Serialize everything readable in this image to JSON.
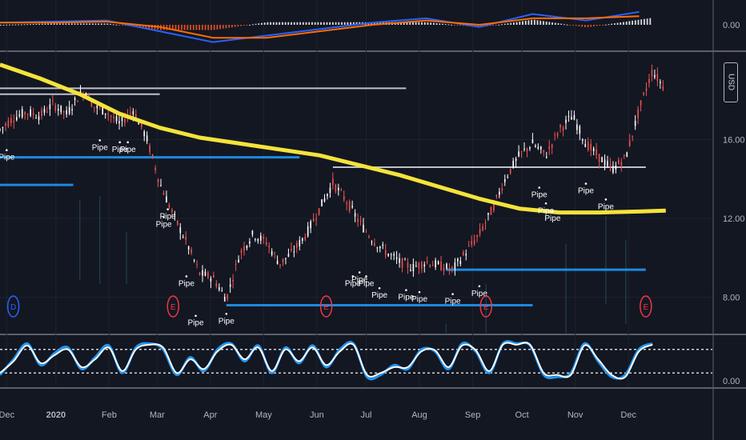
{
  "currency": "USD",
  "chart_data": [
    {
      "type": "line",
      "panel": "MACD",
      "y_tick_labels": [
        "0.00"
      ],
      "ylim": [
        -1.0,
        1.0
      ],
      "histogram_colors": {
        "positive": "#ffffff",
        "negative": "#ff5722"
      },
      "series": [
        {
          "color": "#2962ff",
          "x": [
            0,
            4,
            8,
            12,
            16,
            20,
            24,
            28,
            32,
            36,
            40,
            44,
            48
          ],
          "values": [
            0.1,
            0.15,
            0.2,
            -0.3,
            -0.8,
            -0.5,
            -0.2,
            0.1,
            0.3,
            -0.1,
            0.5,
            0.2,
            0.6
          ]
        },
        {
          "color": "#ff6d00",
          "x": [
            0,
            4,
            8,
            12,
            16,
            20,
            24,
            28,
            32,
            36,
            40,
            44,
            48
          ],
          "values": [
            0.1,
            0.1,
            0.15,
            -0.1,
            -0.6,
            -0.6,
            -0.3,
            0.0,
            0.2,
            0.0,
            0.3,
            0.3,
            0.4
          ]
        }
      ]
    },
    {
      "type": "candlestick",
      "panel": "price",
      "x_tick_labels": [
        "Dec",
        "2020",
        "Feb",
        "Mar",
        "Apr",
        "May",
        "Jun",
        "Jul",
        "Aug",
        "Sep",
        "Oct",
        "Nov",
        "Dec"
      ],
      "y_tick_labels": [
        "8.00",
        "12.00",
        "16.00"
      ],
      "ylim": [
        6.2,
        20.4
      ],
      "log_scale": false,
      "price_approx": {
        "x": [
          0,
          1,
          2,
          3,
          4,
          5,
          6,
          6.5,
          7,
          8,
          9,
          10,
          11,
          12,
          13,
          14,
          15,
          16,
          17,
          18,
          19,
          20,
          21,
          22,
          23,
          24,
          25,
          26,
          27,
          28,
          29,
          30,
          31,
          32,
          33,
          34,
          35,
          36,
          37,
          38,
          39,
          40,
          41,
          42,
          43,
          44,
          45,
          46,
          47,
          48,
          49,
          50
        ],
        "values": [
          16.5,
          17.1,
          17.4,
          17.2,
          17.8,
          17.3,
          18.3,
          18.4,
          17.7,
          17.4,
          16.8,
          17.5,
          16.1,
          13.8,
          12.2,
          10.8,
          9.2,
          9.0,
          7.9,
          10.2,
          11.2,
          10.8,
          9.7,
          10.3,
          11.2,
          12.5,
          13.8,
          12.9,
          11.8,
          10.9,
          10.3,
          9.8,
          9.5,
          9.8,
          9.6,
          9.4,
          10.3,
          11.2,
          12.5,
          14.1,
          15.2,
          15.8,
          15.2,
          16.5,
          17.2,
          15.8,
          15.1,
          14.5,
          15.1,
          17.5,
          19.5,
          18.5
        ]
      },
      "series": [
        {
          "name": "",
          "color": "#f5e33a",
          "x": [
            0,
            3,
            6,
            9,
            12,
            15,
            18,
            21,
            24,
            27,
            30,
            33,
            36,
            39,
            42,
            45,
            48,
            50
          ],
          "values": [
            19.8,
            19.1,
            18.3,
            17.3,
            16.6,
            16.1,
            15.8,
            15.5,
            15.2,
            14.7,
            14.2,
            13.6,
            13.0,
            12.5,
            12.3,
            12.3,
            12.35,
            12.4
          ]
        }
      ],
      "horizontal_levels": [
        {
          "color": "#d1d4dc",
          "value": 18.6,
          "x_start": 0,
          "x_end": 30.5
        },
        {
          "color": "#d1d4dc",
          "value": 18.3,
          "x_start": 0,
          "x_end": 12
        },
        {
          "color": "#2196f3",
          "value": 15.1,
          "x_start": 0,
          "x_end": 22.5
        },
        {
          "color": "#2196f3",
          "value": 13.7,
          "x_start": 0,
          "x_end": 5.5
        },
        {
          "color": "#d1d4dc",
          "value": 14.6,
          "x_start": 25,
          "x_end": 48.5
        },
        {
          "color": "#2196f3",
          "value": 9.4,
          "x_start": 33.5,
          "x_end": 48.5
        },
        {
          "color": "#2196f3",
          "value": 7.6,
          "x_start": 17,
          "x_end": 40
        }
      ],
      "event_markers": [
        {
          "label": "D",
          "color": "#2962ff",
          "x": 1.0
        },
        {
          "label": "E",
          "color": "#f23645",
          "x": 13.0
        },
        {
          "label": "E",
          "color": "#f23645",
          "x": 24.5
        },
        {
          "label": "E",
          "color": "#f23645",
          "x": 36.5
        },
        {
          "label": "E",
          "color": "#f23645",
          "x": 48.5
        }
      ],
      "pipe_labels": [
        {
          "text": "Pipe",
          "x": 0.5,
          "value": 15.3
        },
        {
          "text": "Pipe",
          "x": 7.5,
          "value": 15.8
        },
        {
          "text": "Pipe",
          "x": 9.0,
          "value": 15.7
        },
        {
          "text": "Pipe",
          "x": 9.6,
          "value": 15.7
        },
        {
          "text": "Pipe",
          "x": 12.3,
          "value": 11.9
        },
        {
          "text": "Pipe",
          "x": 12.6,
          "value": 12.3
        },
        {
          "text": "Pipe",
          "x": 14.0,
          "value": 8.9
        },
        {
          "text": "Pipe",
          "x": 14.7,
          "value": 6.9
        },
        {
          "text": "Pipe",
          "x": 17.0,
          "value": 7.0
        },
        {
          "text": "Pipe",
          "x": 26.5,
          "value": 8.9
        },
        {
          "text": "Pipe",
          "x": 27.0,
          "value": 9.1
        },
        {
          "text": "Pipe",
          "x": 27.5,
          "value": 8.9
        },
        {
          "text": "Pipe",
          "x": 28.5,
          "value": 8.3
        },
        {
          "text": "Pipe",
          "x": 30.5,
          "value": 8.2
        },
        {
          "text": "Pipe",
          "x": 31.5,
          "value": 8.1
        },
        {
          "text": "Pipe",
          "x": 34.0,
          "value": 8.0
        },
        {
          "text": "Pipe",
          "x": 36.0,
          "value": 8.4
        },
        {
          "text": "Pipe",
          "x": 40.5,
          "value": 13.4
        },
        {
          "text": "Pipe",
          "x": 41.0,
          "value": 12.6
        },
        {
          "text": "Pipe",
          "x": 41.5,
          "value": 12.2
        },
        {
          "text": "Pipe",
          "x": 44.0,
          "value": 13.6
        },
        {
          "text": "Pipe",
          "x": 45.5,
          "value": 12.8
        }
      ]
    },
    {
      "type": "line",
      "panel": "Stochastic",
      "y_tick_labels": [
        "0.00"
      ],
      "ylim": [
        0,
        100
      ],
      "reference_lines": [
        80,
        20
      ],
      "series": [
        {
          "color": "#2196f3",
          "x": [
            0,
            1,
            2,
            3,
            4,
            5,
            6,
            7,
            8,
            9,
            10,
            11,
            12,
            13,
            14,
            15,
            16,
            17,
            18,
            19,
            20,
            21,
            22,
            23,
            24,
            25,
            26,
            27,
            28,
            29,
            30,
            31,
            32,
            33,
            34,
            35,
            36,
            37,
            38,
            39,
            40,
            41,
            42,
            43,
            44,
            45,
            46,
            47,
            48
          ],
          "values": [
            15,
            55,
            95,
            40,
            70,
            85,
            30,
            60,
            90,
            20,
            85,
            95,
            80,
            15,
            60,
            25,
            80,
            95,
            50,
            90,
            20,
            85,
            45,
            90,
            35,
            80,
            95,
            10,
            15,
            40,
            30,
            80,
            75,
            30,
            95,
            75,
            20,
            95,
            95,
            90,
            15,
            10,
            20,
            95,
            50,
            10,
            15,
            80,
            95
          ]
        },
        {
          "color": "#ffffff",
          "x": [
            0,
            1,
            2,
            3,
            4,
            5,
            6,
            7,
            8,
            9,
            10,
            11,
            12,
            13,
            14,
            15,
            16,
            17,
            18,
            19,
            20,
            21,
            22,
            23,
            24,
            25,
            26,
            27,
            28,
            29,
            30,
            31,
            32,
            33,
            34,
            35,
            36,
            37,
            38,
            39,
            40,
            41,
            42,
            43,
            44,
            45,
            46,
            47,
            48
          ],
          "values": [
            20,
            50,
            90,
            45,
            65,
            80,
            35,
            55,
            85,
            25,
            80,
            92,
            85,
            20,
            55,
            30,
            75,
            92,
            55,
            85,
            25,
            80,
            50,
            85,
            40,
            75,
            92,
            15,
            20,
            35,
            35,
            75,
            78,
            35,
            90,
            78,
            25,
            92,
            92,
            92,
            20,
            15,
            15,
            90,
            55,
            15,
            10,
            75,
            92
          ]
        }
      ]
    }
  ]
}
